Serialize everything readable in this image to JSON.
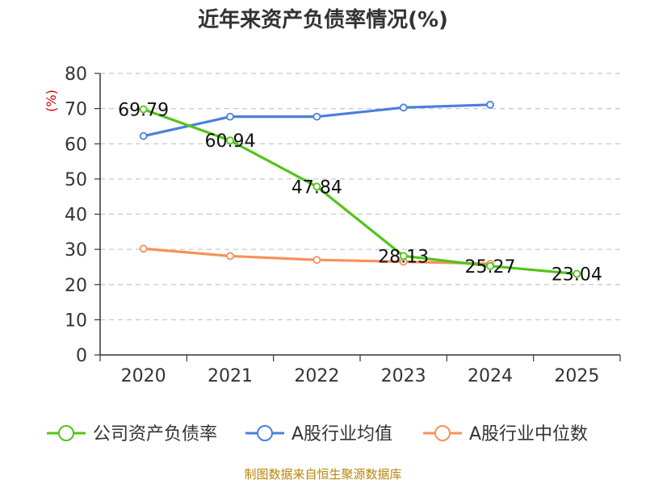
{
  "chart_data": {
    "type": "line",
    "title": "近年来资产负债率情况(%)",
    "unit_label": "(%)",
    "categories": [
      "2020",
      "2021",
      "2022",
      "2023",
      "2024",
      "2025"
    ],
    "ylim": [
      0,
      80
    ],
    "yticks": [
      0,
      10,
      20,
      30,
      40,
      50,
      60,
      70,
      80
    ],
    "grid": true,
    "legend_position": "bottom",
    "series": [
      {
        "name": "公司资产负债率",
        "color": "#52c41a",
        "values": [
          69.79,
          60.94,
          47.84,
          28.13,
          25.27,
          23.04
        ],
        "labels": [
          "69.79",
          "60.94",
          "47.84",
          "28.13",
          "25.27",
          "23.04"
        ]
      },
      {
        "name": "A股行业均值",
        "color": "#4a7fdc",
        "values": [
          62.2,
          67.7,
          67.7,
          70.3,
          71.1,
          null
        ]
      },
      {
        "name": "A股行业中位数",
        "color": "#f6915a",
        "values": [
          30.2,
          28.1,
          27.0,
          26.5,
          25.9,
          null
        ]
      }
    ],
    "source": "制图数据来自恒生聚源数据库"
  }
}
